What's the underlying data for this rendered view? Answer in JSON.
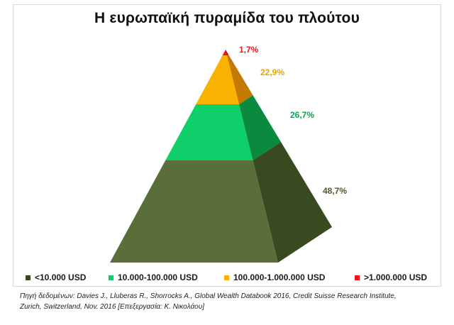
{
  "title": "Η ευρωπαϊκή πυραμίδα του πλούτου",
  "colors": {
    "bottom_front": "#5a6e3a",
    "bottom_side": "#3a4a20",
    "lower_mid_front": "#0ecf6a",
    "lower_mid_side": "#0a8a3e",
    "upper_mid_front": "#f9b200",
    "upper_mid_side": "#c47a00",
    "top_front": "#e8191e",
    "top_side": "#a8000c"
  },
  "chart_data": {
    "type": "pyramid",
    "title": "Η ευρωπαϊκή πυραμίδα του πλούτου",
    "series": [
      {
        "name": "<10.000 USD",
        "value": 48.7,
        "label": "48,7%",
        "color": "#5a6e3a"
      },
      {
        "name": "10.000-100.000 USD",
        "value": 26.7,
        "label": "26,7%",
        "color": "#0ecf6a"
      },
      {
        "name": "100.000-1.000.000 USD",
        "value": 22.9,
        "label": "22,9%",
        "color": "#f9b200"
      },
      {
        "name": ">1.000.000 USD",
        "value": 1.7,
        "label": "1,7%",
        "color": "#e8191e"
      }
    ],
    "legend_position": "bottom"
  },
  "legend": [
    {
      "label": "<10.000 USD",
      "color": "#3a4a20"
    },
    {
      "label": "10.000-100.000 USD",
      "color": "#0ecf6a"
    },
    {
      "label": "100.000-1.000.000 USD",
      "color": "#f9b200"
    },
    {
      "label": ">1.000.000 USD",
      "color": "#e8191e"
    }
  ],
  "source": {
    "line1": "Πηγή δεδομένων: Davies J., Lluberas R., Shorrocks A., Global Wealth Databook 2016, Credit Suisse Research Institute,",
    "line2": "Zurich, Switzerland, Nov. 2016   [Επεξεργασία: Κ. Νικολάου]"
  }
}
